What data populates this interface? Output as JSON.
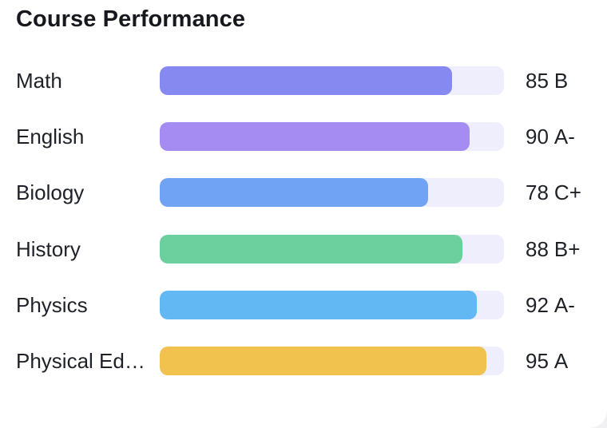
{
  "card": {
    "title": "Course Performance"
  },
  "courses": [
    {
      "name": "Math",
      "score": "85",
      "letter": "B",
      "progress": 0.85,
      "color": "#8589f0"
    },
    {
      "name": "English",
      "score": "90",
      "letter": "A-",
      "progress": 0.9,
      "color": "#a48cf3"
    },
    {
      "name": "Biology",
      "score": "78",
      "letter": "C+",
      "progress": 0.78,
      "color": "#70a3f4"
    },
    {
      "name": "History",
      "score": "88",
      "letter": "B+",
      "progress": 0.88,
      "color": "#6bd09e"
    },
    {
      "name": "Physics",
      "score": "92",
      "letter": "A-",
      "progress": 0.92,
      "color": "#62b8f3"
    },
    {
      "name": "Physical Education",
      "score": "95",
      "letter": "A",
      "progress": 0.95,
      "color": "#f2c24e"
    }
  ]
}
